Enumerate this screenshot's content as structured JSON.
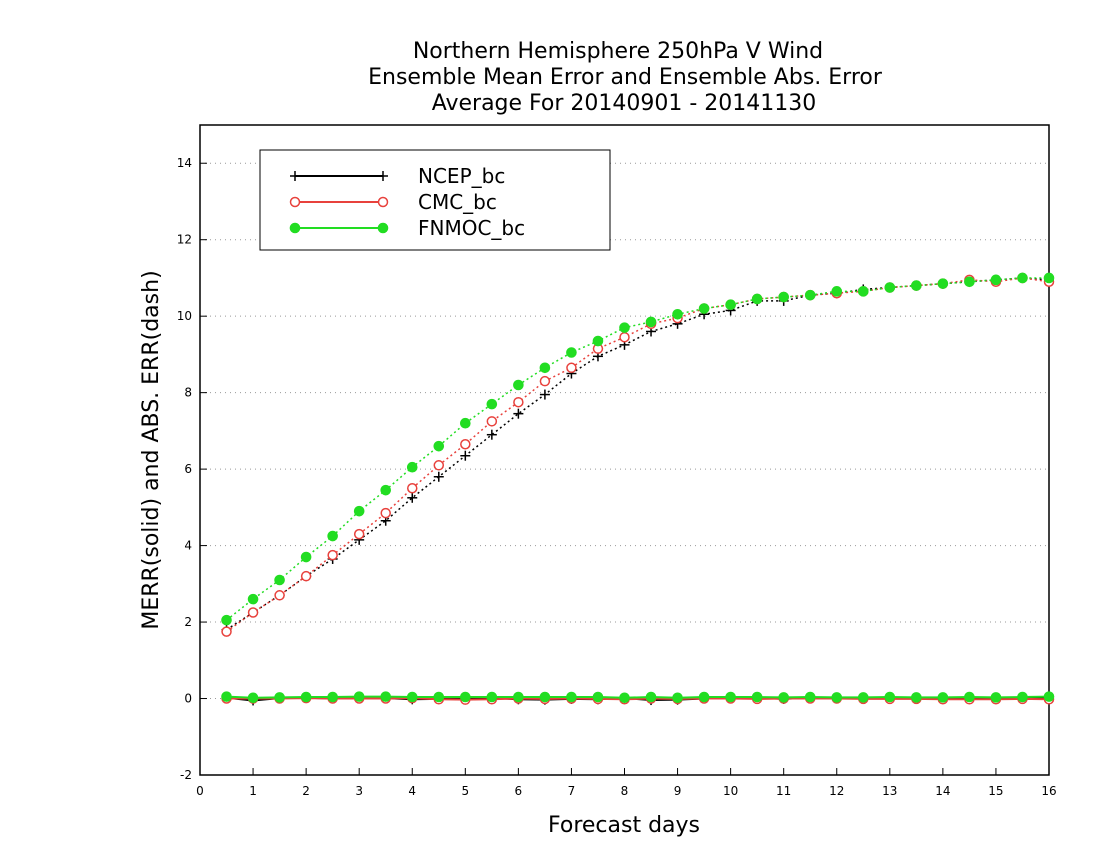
{
  "chart_data": {
    "type": "line",
    "title_lines": [
      "Northern Hemisphere 250hPa V Wind",
      "Ensemble Mean Error and Ensemble Abs. Error",
      "Average For 20140901 - 20141130"
    ],
    "xlabel": "Forecast days",
    "ylabel": "MERR(solid) and ABS. ERR(dash)",
    "xlim": [
      0,
      16
    ],
    "ylim": [
      -2,
      15
    ],
    "xticks": [
      "0",
      "1",
      "2",
      "3",
      "4",
      "5",
      "6",
      "7",
      "8",
      "9",
      "10",
      "11",
      "12",
      "13",
      "14",
      "15",
      "16"
    ],
    "yticks": [
      "-2",
      "0",
      "2",
      "4",
      "6",
      "8",
      "10",
      "12",
      "14"
    ],
    "grid": "horizontal dotted",
    "legend_position": "top-left",
    "x": [
      0.5,
      1,
      1.5,
      2,
      2.5,
      3,
      3.5,
      4,
      4.5,
      5,
      5.5,
      6,
      6.5,
      7,
      7.5,
      8,
      8.5,
      9,
      9.5,
      10,
      10.5,
      11,
      11.5,
      12,
      12.5,
      13,
      13.5,
      14,
      14.5,
      15,
      15.5,
      16
    ],
    "series": [
      {
        "name": "NCEP_bc",
        "color": "#000000",
        "marker": "plus",
        "merr": [
          0.02,
          -0.05,
          0.01,
          0.02,
          0.0,
          0.03,
          0.01,
          -0.02,
          -0.01,
          0.0,
          0.02,
          -0.02,
          -0.03,
          -0.01,
          -0.02,
          0.01,
          -0.04,
          -0.03,
          0.0,
          0.01,
          0.02,
          -0.01,
          0.02,
          0.0,
          0.01,
          0.02,
          0.0,
          0.01,
          0.02,
          0.01,
          0.02,
          0.02
        ],
        "abs_err": [
          1.8,
          2.25,
          2.7,
          3.2,
          3.65,
          4.15,
          4.65,
          5.25,
          5.8,
          6.35,
          6.9,
          7.45,
          7.95,
          8.5,
          8.95,
          9.25,
          9.6,
          9.8,
          10.05,
          10.15,
          10.4,
          10.4,
          10.55,
          10.6,
          10.7,
          10.75,
          10.8,
          10.85,
          10.9,
          10.95,
          11.0,
          10.95
        ]
      },
      {
        "name": "CMC_bc",
        "color": "#e8413c",
        "marker": "open-circle",
        "merr": [
          0.0,
          0.0,
          0.0,
          0.01,
          0.0,
          0.0,
          0.0,
          0.01,
          -0.02,
          -0.03,
          -0.02,
          0.0,
          -0.01,
          0.0,
          -0.01,
          -0.02,
          0.0,
          -0.01,
          0.0,
          0.0,
          -0.01,
          0.0,
          0.0,
          0.0,
          -0.01,
          -0.01,
          -0.01,
          -0.02,
          -0.02,
          -0.02,
          -0.01,
          -0.02
        ],
        "abs_err": [
          1.75,
          2.25,
          2.7,
          3.2,
          3.75,
          4.3,
          4.85,
          5.5,
          6.1,
          6.65,
          7.25,
          7.75,
          8.3,
          8.65,
          9.15,
          9.45,
          9.8,
          9.95,
          10.2,
          10.3,
          10.45,
          10.5,
          10.55,
          10.6,
          10.65,
          10.75,
          10.8,
          10.85,
          10.95,
          10.9,
          11.0,
          10.9
        ]
      },
      {
        "name": "FNMOC_bc",
        "color": "#22dd22",
        "marker": "filled-circle",
        "merr": [
          0.05,
          0.02,
          0.03,
          0.04,
          0.04,
          0.05,
          0.05,
          0.04,
          0.04,
          0.04,
          0.04,
          0.04,
          0.04,
          0.04,
          0.04,
          0.02,
          0.04,
          0.02,
          0.04,
          0.04,
          0.04,
          0.03,
          0.04,
          0.03,
          0.03,
          0.04,
          0.03,
          0.03,
          0.04,
          0.03,
          0.04,
          0.05
        ],
        "abs_err": [
          2.05,
          2.6,
          3.1,
          3.7,
          4.25,
          4.9,
          5.45,
          6.05,
          6.6,
          7.2,
          7.7,
          8.2,
          8.65,
          9.05,
          9.35,
          9.7,
          9.85,
          10.05,
          10.2,
          10.3,
          10.45,
          10.5,
          10.55,
          10.65,
          10.65,
          10.75,
          10.8,
          10.85,
          10.9,
          10.95,
          11.0,
          11.0
        ]
      }
    ]
  }
}
